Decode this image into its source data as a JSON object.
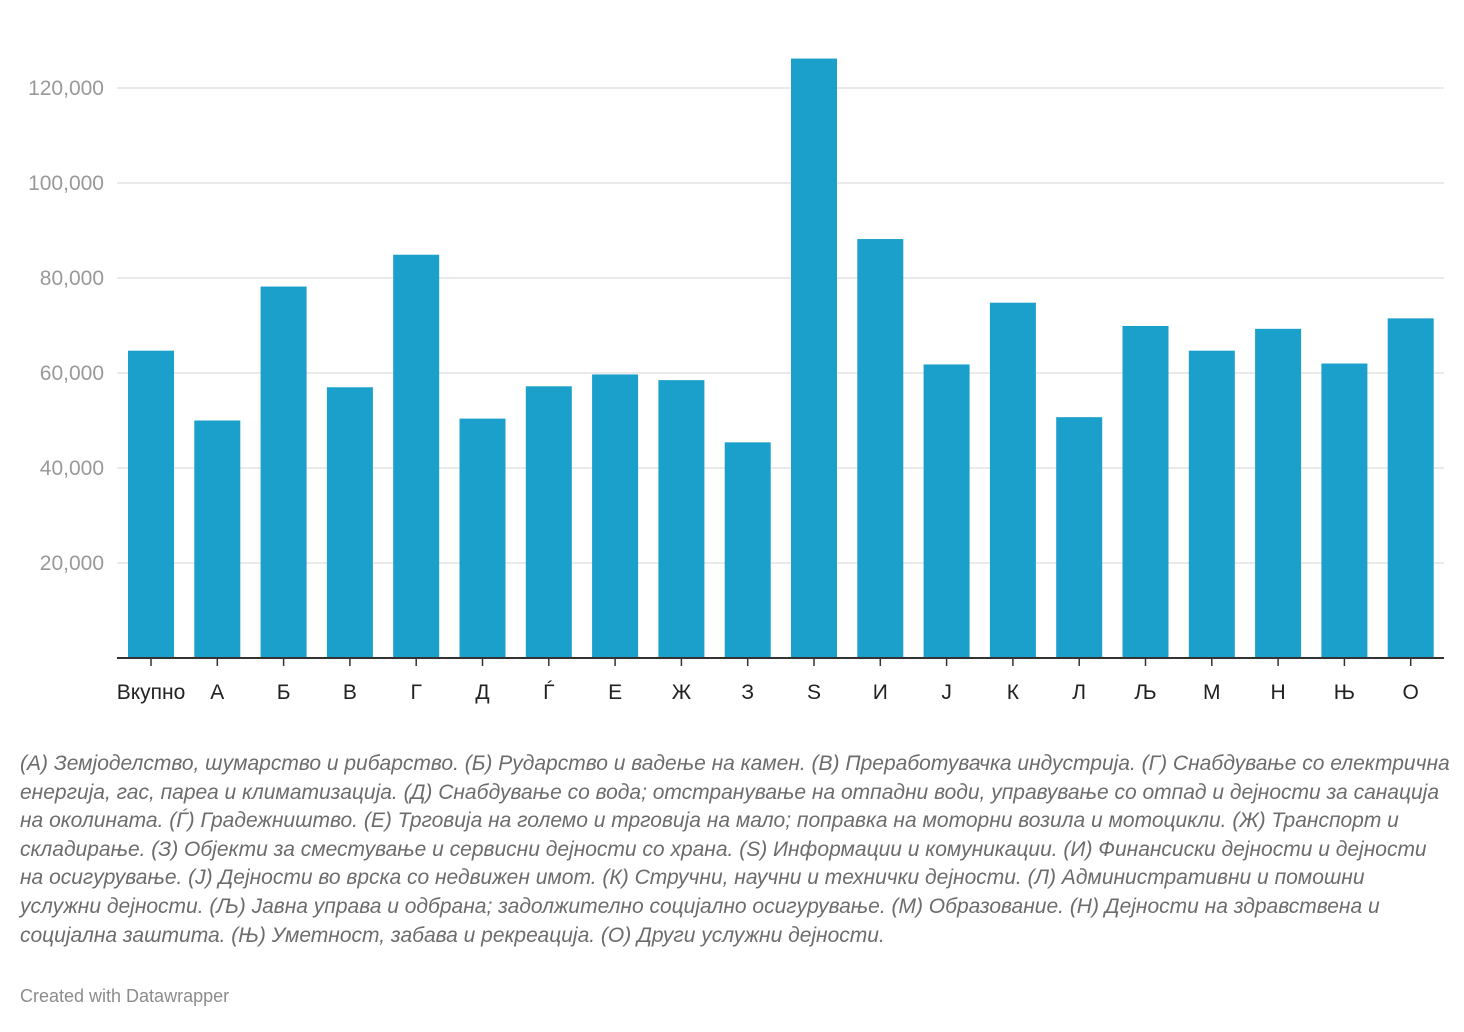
{
  "chart_data": {
    "type": "bar",
    "categories": [
      "Вкупно",
      "А",
      "Б",
      "В",
      "Г",
      "Д",
      "Ѓ",
      "Е",
      "Ж",
      "З",
      "S",
      "И",
      "Ј",
      "К",
      "Л",
      "Љ",
      "М",
      "Н",
      "Њ",
      "О"
    ],
    "values": [
      64700,
      50000,
      78200,
      57000,
      84900,
      50400,
      57200,
      59700,
      58500,
      45400,
      126200,
      88200,
      61800,
      74800,
      50700,
      69900,
      64700,
      69300,
      62000,
      71500
    ],
    "ylim": [
      0,
      130000
    ],
    "y_ticks": [
      20000,
      40000,
      60000,
      80000,
      100000,
      120000
    ],
    "y_tick_labels": [
      "20,000",
      "40,000",
      "60,000",
      "80,000",
      "100,000",
      "120,000"
    ],
    "bar_color": "#1aa0cb",
    "grid": true,
    "gridline_color": "#e3e3e3",
    "axis_color": "#333333",
    "title": "",
    "xlabel": "",
    "ylabel": ""
  },
  "notes": "(А) Земјоделство, шумарство и рибарство. (Б) Рударство и вадење на камен. (В) Преработувачка индустрија. (Г) Снабдување со електрична енергија, гас, пареа и климатизација. (Д) Снабдување со вода; отстранување на отпадни води, управување со отпад и дејности за санација на околината. (Ѓ) Градежништво. (Е) Трговија на големо и трговија на мало; поправка на моторни возила и мотоцикли. (Ж) Транспорт и складирање. (З) Објекти за сместување и сервисни дејности со храна. (S) Информации и комуникации. (И) Финансиски дејности и дејности на осигурување. (Ј) Дејности во врска со недвижен имот. (К) Стручни, научни и технички дејности. (Л) Административни и помошни услужни дејности. (Љ) Јавна управа и одбрана; задолжително социјално осигурување. (М) Образование. (Н) Дејности на здравствена и социјална заштита. (Њ) Уметност, забава и рекреација. (О) Други услужни дејности.",
  "credit": "Created with Datawrapper"
}
